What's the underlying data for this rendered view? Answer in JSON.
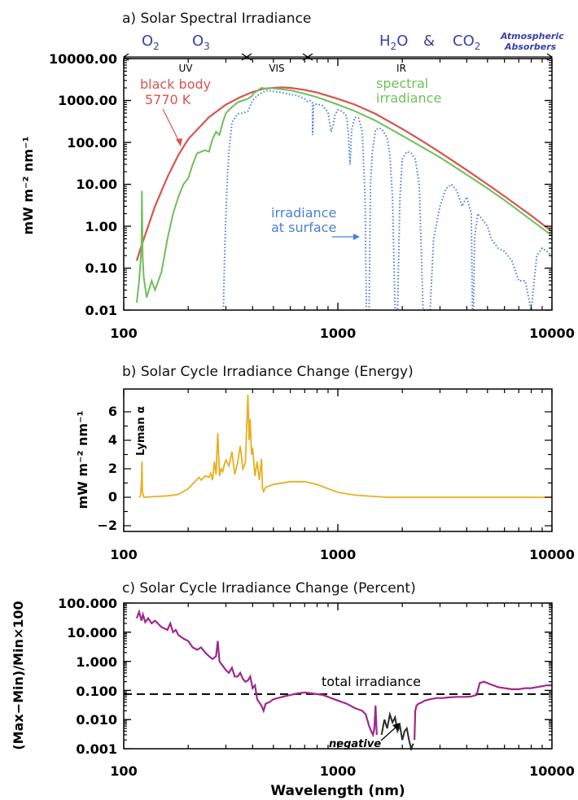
{
  "figure": {
    "xlabel": "Wavelength (nm)"
  },
  "colors": {
    "black_body": "#d9534f",
    "spectral": "#6fbf5a",
    "surface": "#4a7fd6",
    "energy": "#e8b020",
    "percent_pos": "#a0288c",
    "percent_neg": "#2a2a2a",
    "absorbers": "#3a3fa8"
  },
  "chart_data": [
    {
      "type": "line",
      "title": "a) Solar Spectral Irradiance",
      "ylabel": "mW m⁻² nm⁻¹",
      "xscale": "log",
      "yscale": "log",
      "xlim": [
        100,
        10000
      ],
      "ylim": [
        0.01,
        10000
      ],
      "xticks": [
        "100",
        "1000",
        "10000"
      ],
      "yticks": [
        "0.01",
        "0.10",
        "1.00",
        "10.00",
        "100.00",
        "1000.00",
        "10000.00"
      ],
      "absorbers": {
        "o2": "O",
        "o2_sub": "2",
        "o3": "O",
        "o3_sub": "3",
        "h2o_a": "H",
        "h2o_sub": "2",
        "h2o_b": "O",
        "amp": "&",
        "co2": "CO",
        "co2_sub": "2",
        "label_line1": "Atmospheric",
        "label_line2": "Absorbers"
      },
      "regions": [
        {
          "label": "UV"
        },
        {
          "label": "VIS"
        },
        {
          "label": "IR"
        }
      ],
      "annotations": {
        "black_body_line1": "black body",
        "black_body_line2": "5770 K",
        "spectral_line1": "spectral",
        "spectral_line2": "irradiance",
        "surface_line1": "irradiance",
        "surface_line2": "at surface"
      },
      "series": [
        {
          "key": "black_body",
          "x": [
            115,
            120,
            130,
            140,
            160,
            180,
            200,
            250,
            300,
            350,
            400,
            450,
            500,
            550,
            600,
            700,
            800,
            1000,
            1200,
            1500,
            2000,
            2500,
            3000,
            4000,
            5000,
            6000,
            8000,
            10000
          ],
          "y": [
            0.15,
            0.3,
            1.0,
            3.0,
            15,
            50,
            120,
            400,
            800,
            1200,
            1600,
            1900,
            2000,
            2050,
            2000,
            1800,
            1550,
            1100,
            800,
            480,
            210,
            105,
            58,
            22,
            10,
            5.2,
            1.8,
            0.75
          ]
        },
        {
          "key": "spectral",
          "x": [
            115,
            118,
            121,
            121.6,
            122.5,
            124,
            128,
            135,
            140,
            150,
            160,
            170,
            180,
            190,
            200,
            210,
            220,
            230,
            240,
            250,
            260,
            270,
            280,
            290,
            300,
            320,
            340,
            360,
            380,
            395,
            405,
            420,
            440,
            460,
            480,
            500,
            550,
            600,
            700,
            800,
            1000,
            1200,
            1500,
            2000,
            2500,
            3000,
            4000,
            5000,
            6000,
            8000,
            10000
          ],
          "y": [
            0.015,
            0.05,
            0.3,
            7,
            0.2,
            0.06,
            0.02,
            0.05,
            0.03,
            0.08,
            0.5,
            2,
            5,
            10,
            14,
            30,
            55,
            60,
            65,
            60,
            120,
            180,
            150,
            300,
            500,
            700,
            900,
            1000,
            1100,
            1250,
            1500,
            1700,
            2000,
            1900,
            2000,
            1950,
            1850,
            1750,
            1450,
            1200,
            800,
            560,
            330,
            145,
            75,
            44,
            17,
            8,
            4.2,
            1.4,
            0.6
          ]
        },
        {
          "key": "surface",
          "x": [
            292,
            296,
            300,
            305,
            310,
            320,
            340,
            360,
            380,
            400,
            420,
            440,
            460,
            480,
            500,
            550,
            600,
            650,
            700,
            720,
            740,
            760,
            763,
            770,
            800,
            850,
            900,
            930,
            950,
            970,
            1000,
            1050,
            1100,
            1120,
            1140,
            1160,
            1200,
            1250,
            1300,
            1340,
            1360,
            1380,
            1400,
            1420,
            1450,
            1500,
            1550,
            1600,
            1700,
            1750,
            1800,
            1850,
            1870,
            1900,
            1950,
            2000,
            2100,
            2200,
            2300,
            2400,
            2500,
            2600,
            2700,
            2800,
            3000,
            3200,
            3400,
            3600,
            3800,
            4000,
            4200,
            4250,
            4300,
            4350,
            4500,
            4700,
            5000,
            5200,
            5600,
            6000,
            6500,
            7000,
            7500,
            8000,
            8500,
            9000,
            9500,
            10000
          ],
          "y": [
            0.01,
            0.2,
            2,
            15,
            60,
            300,
            480,
            500,
            560,
            1000,
            1300,
            1500,
            1700,
            1700,
            1650,
            1550,
            1400,
            1300,
            1100,
            950,
            1000,
            900,
            150,
            800,
            820,
            750,
            520,
            180,
            250,
            450,
            600,
            550,
            420,
            150,
            30,
            200,
            400,
            380,
            180,
            5,
            0.01,
            0.01,
            0.01,
            10,
            60,
            200,
            220,
            210,
            130,
            50,
            5,
            0.01,
            0.01,
            0.01,
            5,
            40,
            60,
            55,
            40,
            10,
            0.01,
            0.01,
            0.01,
            0.5,
            3,
            8,
            10,
            7,
            3,
            5,
            2,
            0.01,
            0.01,
            0.5,
            2,
            1.5,
            1,
            0.5,
            0.3,
            0.25,
            0.15,
            0.05,
            0.05,
            0.01,
            0.2,
            0.3,
            0.25,
            0.2
          ]
        }
      ]
    },
    {
      "type": "line",
      "title": "b) Solar Cycle Irradiance Change (Energy)",
      "ylabel": "mW m⁻² nm⁻¹",
      "xscale": "log",
      "yscale": "linear",
      "xlim": [
        100,
        10000
      ],
      "ylim": [
        -2.4,
        7.6
      ],
      "xticks": [
        "100",
        "1000",
        "10000"
      ],
      "yticks": [
        "−2",
        "0",
        "2",
        "4",
        "6"
      ],
      "annotations": {
        "lyman": "Lyman α"
      },
      "series": [
        {
          "key": "energy",
          "x": [
            118,
            120,
            121,
            121.6,
            122.3,
            124,
            140,
            160,
            180,
            200,
            215,
            225,
            230,
            240,
            250,
            255,
            260,
            265,
            270,
            275,
            280,
            285,
            290,
            295,
            300,
            310,
            320,
            330,
            340,
            350,
            360,
            370,
            380,
            385,
            390,
            395,
            400,
            410,
            420,
            430,
            440,
            445,
            450,
            460,
            500,
            600,
            700,
            800,
            900,
            1000,
            1200,
            1500,
            1700,
            2000,
            3000,
            5000,
            10000
          ],
          "y": [
            0,
            0.1,
            1.2,
            2.5,
            0.4,
            0,
            0.05,
            0.1,
            0.2,
            0.6,
            1.1,
            1.4,
            1.2,
            1.5,
            1.4,
            1.7,
            1.2,
            2.5,
            1.6,
            4.5,
            1.5,
            2,
            1.8,
            2.3,
            2.6,
            2.2,
            3.2,
            1.6,
            2.4,
            3.6,
            2,
            2.4,
            7.2,
            4,
            5.5,
            3,
            3.5,
            1.5,
            2.5,
            1.2,
            2.7,
            0.6,
            0.4,
            0.7,
            0.9,
            1.1,
            1.1,
            0.9,
            0.6,
            0.35,
            0.15,
            0.05,
            0,
            0,
            0,
            0,
            0
          ]
        }
      ]
    },
    {
      "type": "line",
      "title": "c) Solar Cycle Irradiance Change (Percent)",
      "ylabel": "(Max−Min)/Min×100",
      "xlabel": "Wavelength (nm)",
      "xscale": "log",
      "yscale": "log",
      "xlim": [
        100,
        10000
      ],
      "ylim": [
        0.001,
        100
      ],
      "xticks": [
        "100",
        "1000",
        "10000"
      ],
      "yticks": [
        "0.001",
        "0.010",
        "0.100",
        "1.000",
        "10.000",
        "100.000"
      ],
      "total_irradiance": 0.075,
      "annotations": {
        "total": "total irradiance",
        "negative": "negative"
      },
      "series": [
        {
          "key": "percent_pos_1",
          "x": [
            115,
            118,
            121,
            123,
            126,
            130,
            135,
            140,
            150,
            160,
            165,
            170,
            175,
            180,
            190,
            200,
            210,
            220,
            230,
            240,
            250,
            260,
            270,
            275,
            280,
            290,
            300,
            310,
            320,
            330,
            340,
            350,
            360,
            370,
            380,
            390,
            400,
            410,
            420,
            440,
            450,
            460,
            480,
            500,
            550,
            600,
            650,
            700,
            750,
            800,
            850,
            900,
            1000,
            1100,
            1200,
            1300,
            1350,
            1400,
            1430,
            1460,
            1480,
            1500,
            1520
          ],
          "y": [
            30,
            50,
            25,
            40,
            22,
            30,
            20,
            25,
            15,
            12,
            20,
            10,
            12,
            8,
            6,
            5,
            3,
            2.5,
            3,
            2,
            1.5,
            1.2,
            1.5,
            5,
            1,
            0.7,
            0.5,
            0.4,
            0.6,
            0.3,
            0.3,
            0.4,
            0.25,
            0.2,
            0.22,
            0.3,
            0.12,
            0.15,
            0.05,
            0.03,
            0.02,
            0.035,
            0.04,
            0.05,
            0.06,
            0.07,
            0.08,
            0.085,
            0.08,
            0.075,
            0.07,
            0.06,
            0.045,
            0.035,
            0.025,
            0.02,
            0.015,
            0.006,
            0.004,
            0.003,
            0.005,
            0.03,
            0.003
          ]
        },
        {
          "key": "percent_neg",
          "x": [
            1600,
            1650,
            1700,
            1750,
            1800,
            1850,
            1900,
            1950,
            2000,
            2050,
            2100,
            2150,
            2200,
            2250
          ],
          "y": [
            0.003,
            0.01,
            0.005,
            0.015,
            0.008,
            0.012,
            0.004,
            0.006,
            0.002,
            0.004,
            0.005,
            0.002,
            0.001,
            0.0015
          ]
        },
        {
          "key": "percent_pos_2",
          "x": [
            2280,
            2300,
            2330,
            2380,
            2450,
            2550,
            2700,
            2900,
            3100,
            3300,
            3600,
            3900,
            4200,
            4450,
            4600,
            4800,
            5200,
            5600,
            6000,
            6500,
            7000,
            7500,
            8000,
            8500,
            9000,
            9500,
            10000
          ],
          "y": [
            0.002,
            0.02,
            0.03,
            0.035,
            0.038,
            0.045,
            0.05,
            0.055,
            0.055,
            0.058,
            0.06,
            0.06,
            0.062,
            0.07,
            0.18,
            0.2,
            0.16,
            0.13,
            0.12,
            0.11,
            0.11,
            0.12,
            0.12,
            0.13,
            0.14,
            0.15,
            0.15
          ]
        }
      ]
    }
  ]
}
